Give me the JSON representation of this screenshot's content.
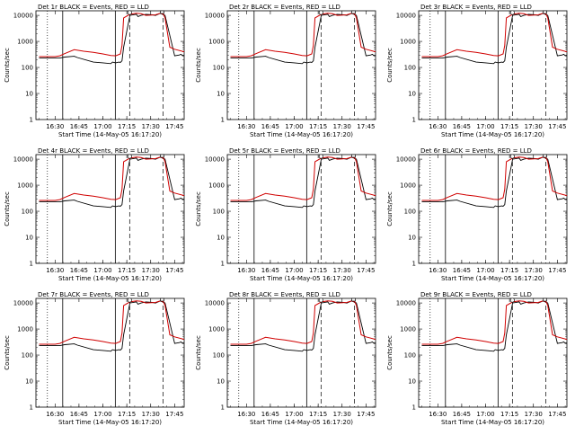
{
  "chart_data": [
    {
      "type": "line",
      "title": "Det 1r BLACK = Events, RED = LLD",
      "xlabel": "Start Time (14-May-05 16:17:20)",
      "ylabel": "Counts/sec",
      "x_ticks": [
        "16:30",
        "16:45",
        "17:00",
        "17:15",
        "17:30",
        "17:45"
      ],
      "y_ticks": [
        "1",
        "10",
        "100",
        "1000",
        "10000"
      ],
      "ylim": [
        1,
        15000
      ],
      "xlim_minutes": [
        16.3,
        17.85
      ],
      "y_scale": "log",
      "series": [
        {
          "name": "BLACK = Events",
          "color": "#000000",
          "x": [
            16.333,
            16.55,
            16.6,
            16.7,
            16.733,
            16.9,
            17.0,
            17.083,
            17.1,
            17.133,
            17.167,
            17.183,
            17.2,
            17.217,
            17.283,
            17.35,
            17.367,
            17.4,
            17.45,
            17.517,
            17.55,
            17.6,
            17.65,
            17.75,
            17.8,
            17.817,
            17.833,
            17.85
          ],
          "y": [
            230,
            230,
            250,
            270,
            240,
            160,
            150,
            140,
            160,
            150,
            160,
            155,
            180,
            600,
            10000,
            11000,
            9000,
            10000,
            11000,
            10500,
            10000,
            12000,
            10000,
            280,
            300,
            320,
            280,
            280
          ]
        },
        {
          "name": "RED = LLD",
          "color": "#d00000",
          "x": [
            16.333,
            16.5,
            16.55,
            16.6,
            16.7,
            16.8,
            16.9,
            17.0,
            17.083,
            17.133,
            17.183,
            17.2,
            17.217,
            17.283,
            17.35,
            17.4,
            17.45,
            17.55,
            17.6,
            17.633,
            17.65,
            17.7,
            17.75,
            17.85
          ],
          "y": [
            260,
            260,
            280,
            340,
            480,
            420,
            380,
            330,
            290,
            280,
            330,
            700,
            8000,
            11000,
            12000,
            11500,
            10000,
            10500,
            12000,
            11000,
            8000,
            600,
            500,
            400
          ]
        }
      ]
    },
    {
      "type": "line",
      "title": "Det 2r BLACK = Events, RED = LLD",
      "xlabel": "Start Time (14-May-05 16:17:20)",
      "ylabel": "Counts/sec",
      "x_ticks": [
        "16:30",
        "16:45",
        "17:00",
        "17:15",
        "17:30",
        "17:45"
      ],
      "y_ticks": [
        "1",
        "10",
        "100",
        "1000",
        "10000"
      ]
    },
    {
      "type": "line",
      "title": "Det 3r BLACK = Events, RED = LLD",
      "xlabel": "Start Time (14-May-05 16:17:20)",
      "ylabel": "Counts/sec",
      "x_ticks": [
        "16:30",
        "16:45",
        "17:00",
        "17:15",
        "17:30",
        "17:45"
      ],
      "y_ticks": [
        "1",
        "10",
        "100",
        "1000",
        "10000"
      ]
    },
    {
      "type": "line",
      "title": "Det 4r BLACK = Events, RED = LLD",
      "xlabel": "Start Time (14-May-05 16:17:20)",
      "ylabel": "Counts/sec",
      "x_ticks": [
        "16:30",
        "16:45",
        "17:00",
        "17:15",
        "17:30",
        "17:45"
      ],
      "y_ticks": [
        "1",
        "10",
        "100",
        "1000",
        "10000"
      ]
    },
    {
      "type": "line",
      "title": "Det 5r BLACK = Events, RED = LLD",
      "xlabel": "Start Time (14-May-05 16:17:20)",
      "ylabel": "Counts/sec",
      "x_ticks": [
        "16:30",
        "16:45",
        "17:00",
        "17:15",
        "17:30",
        "17:45"
      ],
      "y_ticks": [
        "1",
        "10",
        "100",
        "1000",
        "10000"
      ]
    },
    {
      "type": "line",
      "title": "Det 6r BLACK = Events, RED = LLD",
      "xlabel": "Start Time (14-May-05 16:17:20)",
      "ylabel": "Counts/sec",
      "x_ticks": [
        "16:30",
        "16:45",
        "17:00",
        "17:15",
        "17:30",
        "17:45"
      ],
      "y_ticks": [
        "1",
        "10",
        "100",
        "1000",
        "10000"
      ]
    },
    {
      "type": "line",
      "title": "Det 7r BLACK = Events, RED = LLD",
      "xlabel": "Start Time (14-May-05 16:17:20)",
      "ylabel": "Counts/sec",
      "x_ticks": [
        "16:30",
        "16:45",
        "17:00",
        "17:15",
        "17:30",
        "17:45"
      ],
      "y_ticks": [
        "1",
        "10",
        "100",
        "1000",
        "10000"
      ]
    },
    {
      "type": "line",
      "title": "Det 8r BLACK = Events, RED = LLD",
      "xlabel": "Start Time (14-May-05 16:17:20)",
      "ylabel": "Counts/sec",
      "x_ticks": [
        "16:30",
        "16:45",
        "17:00",
        "17:15",
        "17:30",
        "17:45"
      ],
      "y_ticks": [
        "1",
        "10",
        "100",
        "1000",
        "10000"
      ]
    },
    {
      "type": "line",
      "title": "Det 9r BLACK = Events, RED = LLD",
      "xlabel": "Start Time (14-May-05 16:17:20)",
      "ylabel": "Counts/sec",
      "x_ticks": [
        "16:30",
        "16:45",
        "17:00",
        "17:15",
        "17:30",
        "17:45"
      ],
      "y_ticks": [
        "1",
        "10",
        "100",
        "1000",
        "10000"
      ]
    }
  ]
}
